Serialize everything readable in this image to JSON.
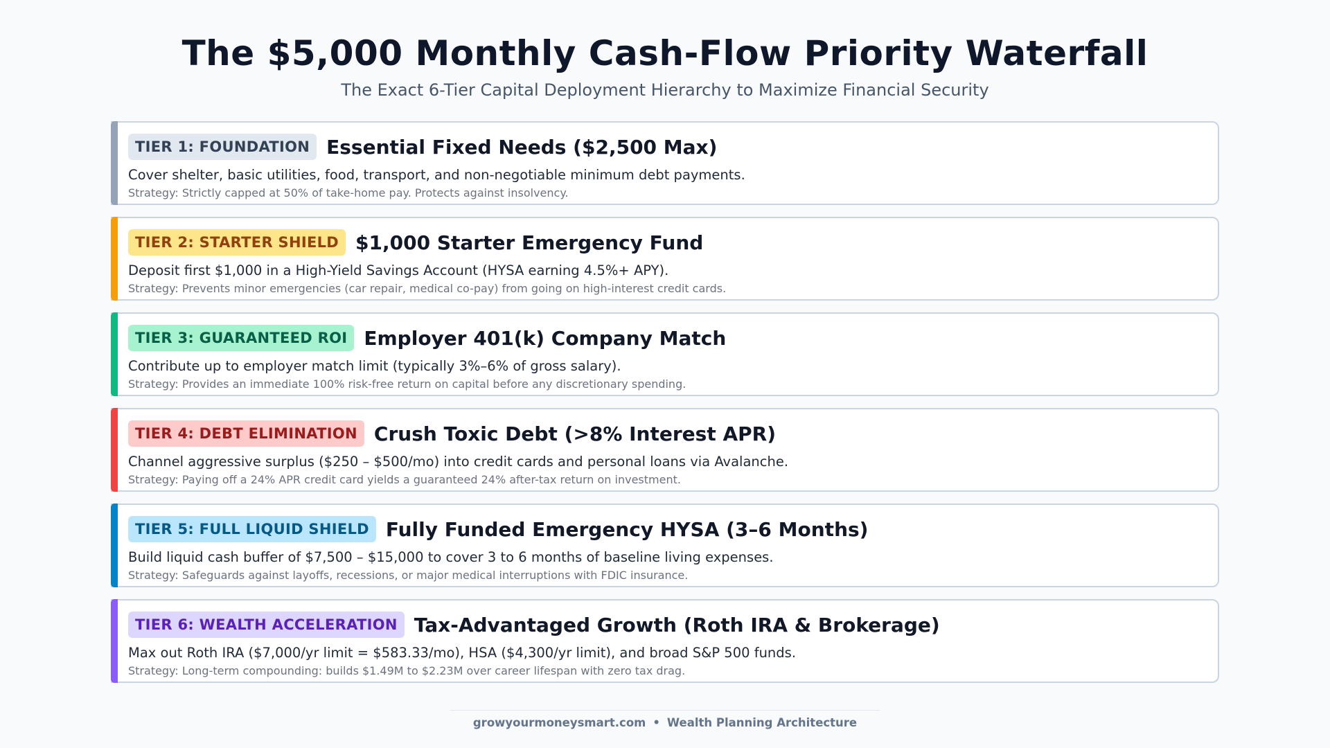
{
  "header": {
    "title": "The $5,000 Monthly Cash-Flow Priority Waterfall",
    "subtitle": "The Exact 6-Tier Capital Deployment Hierarchy to Maximize Financial Security"
  },
  "tiers": [
    {
      "badge": "TIER 1: FOUNDATION",
      "title": "Essential Fixed Needs ($2,500 Max)",
      "description": "Cover shelter, basic utilities, food, transport, and non-negotiable minimum debt payments.",
      "strategy": "Strategy: Strictly capped at 50% of take-home pay. Protects against insolvency.",
      "colors": {
        "bar": "#94a3b8",
        "badge_bg": "#e2e8f0",
        "badge_text": "#334155"
      }
    },
    {
      "badge": "TIER 2: STARTER SHIELD",
      "title": "$1,000 Starter Emergency Fund",
      "description": "Deposit first $1,000 in a High-Yield Savings Account (HYSA earning 4.5%+ APY).",
      "strategy": "Strategy: Prevents minor emergencies (car repair, medical co-pay) from going on high-interest credit cards.",
      "colors": {
        "bar": "#f59e0b",
        "badge_bg": "#fde68a",
        "badge_text": "#92400e"
      }
    },
    {
      "badge": "TIER 3: GUARANTEED ROI",
      "title": "Employer 401(k) Company Match",
      "description": "Contribute up to employer match limit (typically 3%–6% of gross salary).",
      "strategy": "Strategy: Provides an immediate 100% risk-free return on capital before any discretionary spending.",
      "colors": {
        "bar": "#10b981",
        "badge_bg": "#a7f3d0",
        "badge_text": "#065f46"
      }
    },
    {
      "badge": "TIER 4: DEBT ELIMINATION",
      "title": "Crush Toxic Debt (>8% Interest APR)",
      "description": "Channel aggressive surplus ($250 – $500/mo) into credit cards and personal loans via Avalanche.",
      "strategy": "Strategy: Paying off a 24% APR credit card yields a guaranteed 24% after-tax return on investment.",
      "colors": {
        "bar": "#ef4444",
        "badge_bg": "#fecaca",
        "badge_text": "#991b1b"
      }
    },
    {
      "badge": "TIER 5: FULL LIQUID SHIELD",
      "title": "Fully Funded Emergency HYSA (3–6 Months)",
      "description": "Build liquid cash buffer of $7,500 – $15,000 to cover 3 to 6 months of baseline living expenses.",
      "strategy": "Strategy: Safeguards against layoffs, recessions, or major medical interruptions with FDIC insurance.",
      "colors": {
        "bar": "#0284c7",
        "badge_bg": "#bae6fd",
        "badge_text": "#075985"
      }
    },
    {
      "badge": "TIER 6: WEALTH ACCELERATION",
      "title": "Tax-Advantaged Growth (Roth IRA & Brokerage)",
      "description": "Max out Roth IRA ($7,000/yr limit = $583.33/mo), HSA ($4,300/yr limit), and broad S&P 500 funds.",
      "strategy": "Strategy: Long-term compounding: builds $1.49M to $2.23M over career lifespan with zero tax drag.",
      "colors": {
        "bar": "#8b5cf6",
        "badge_bg": "#ddd6fe",
        "badge_text": "#5b21b6"
      }
    }
  ],
  "footer": {
    "site": "growyourmoneysmart.com",
    "separator": "•",
    "tagline": "Wealth Planning Architecture"
  }
}
